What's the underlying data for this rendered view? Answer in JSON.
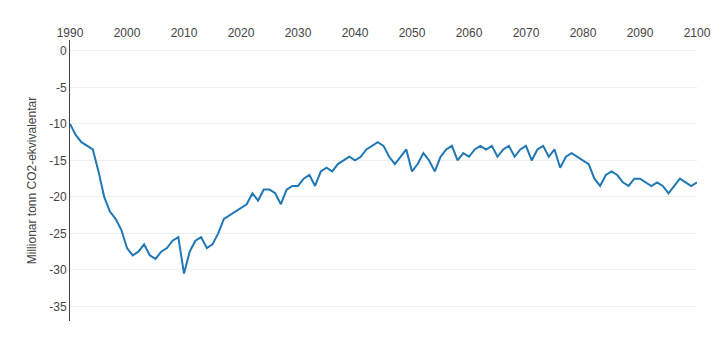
{
  "chart_data": {
    "type": "line",
    "y_label": "Millionar tonn CO2-ekvivalentar",
    "x": [
      1990,
      1991,
      1992,
      1993,
      1994,
      1995,
      1996,
      1997,
      1998,
      1999,
      2000,
      2001,
      2002,
      2003,
      2004,
      2005,
      2006,
      2007,
      2008,
      2009,
      2010,
      2011,
      2012,
      2013,
      2014,
      2015,
      2016,
      2017,
      2018,
      2019,
      2020,
      2021,
      2022,
      2023,
      2024,
      2025,
      2026,
      2027,
      2028,
      2029,
      2030,
      2031,
      2032,
      2033,
      2034,
      2035,
      2036,
      2037,
      2038,
      2039,
      2040,
      2041,
      2042,
      2043,
      2044,
      2045,
      2046,
      2047,
      2048,
      2049,
      2050,
      2051,
      2052,
      2053,
      2054,
      2055,
      2056,
      2057,
      2058,
      2059,
      2060,
      2061,
      2062,
      2063,
      2064,
      2065,
      2066,
      2067,
      2068,
      2069,
      2070,
      2071,
      2072,
      2073,
      2074,
      2075,
      2076,
      2077,
      2078,
      2079,
      2080,
      2081,
      2082,
      2083,
      2084,
      2085,
      2086,
      2087,
      2088,
      2089,
      2090,
      2091,
      2092,
      2093,
      2094,
      2095,
      2096,
      2097,
      2098,
      2099,
      2100
    ],
    "values": [
      -10.0,
      -11.5,
      -12.5,
      -13.0,
      -13.5,
      -16.5,
      -20.0,
      -22.0,
      -23.0,
      -24.5,
      -27.0,
      -28.0,
      -27.5,
      -26.5,
      -28.0,
      -28.5,
      -27.5,
      -27.0,
      -26.0,
      -25.5,
      -30.5,
      -27.5,
      -26.0,
      -25.5,
      -27.0,
      -26.5,
      -25.0,
      -23.0,
      -22.5,
      -22.0,
      -21.5,
      -21.0,
      -19.5,
      -20.5,
      -19.0,
      -19.0,
      -19.5,
      -21.0,
      -19.0,
      -18.5,
      -18.5,
      -17.5,
      -17.0,
      -18.5,
      -16.5,
      -16.0,
      -16.5,
      -15.5,
      -15.0,
      -14.5,
      -15.0,
      -14.5,
      -13.5,
      -13.0,
      -12.5,
      -13.0,
      -14.5,
      -15.5,
      -14.5,
      -13.5,
      -16.5,
      -15.5,
      -14.0,
      -15.0,
      -16.5,
      -14.5,
      -13.5,
      -13.0,
      -15.0,
      -14.0,
      -14.5,
      -13.5,
      -13.0,
      -13.5,
      -13.0,
      -14.5,
      -13.5,
      -13.0,
      -14.5,
      -13.5,
      -13.0,
      -15.0,
      -13.5,
      -13.0,
      -14.5,
      -13.5,
      -16.0,
      -14.5,
      -14.0,
      -14.5,
      -15.0,
      -15.5,
      -17.5,
      -18.5,
      -17.0,
      -16.5,
      -17.0,
      -18.0,
      -18.5,
      -17.5,
      -17.5,
      -18.0,
      -18.5,
      -18.0,
      -18.5,
      -19.5,
      -18.5,
      -17.5,
      -18.0,
      -18.5,
      -18.0
    ],
    "xlim": [
      1990,
      2100
    ],
    "xticks": [
      1990,
      2000,
      2010,
      2020,
      2030,
      2040,
      2050,
      2060,
      2070,
      2080,
      2090,
      2100
    ],
    "ylim": [
      -37,
      1.5
    ],
    "yticks": [
      0,
      -5,
      -10,
      -15,
      -20,
      -25,
      -30,
      -35
    ],
    "grid": true
  }
}
